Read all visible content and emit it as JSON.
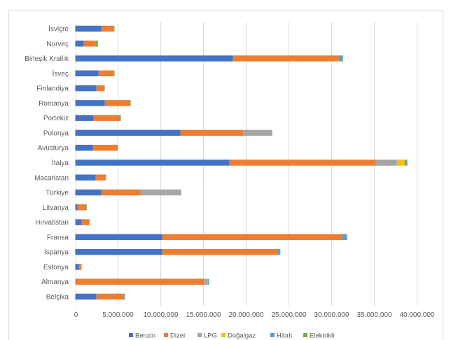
{
  "chart_data": {
    "type": "bar",
    "orientation": "horizontal",
    "stacked": true,
    "title": "",
    "xlabel": "",
    "ylabel": "",
    "xlim": [
      0,
      40000000
    ],
    "grid": true,
    "legend_position": "bottom",
    "categories": [
      "İsviçre",
      "Norveç",
      "Birleşik Krallık",
      "İsveç",
      "Finlandiya",
      "Romanya",
      "Portekiz",
      "Polonya",
      "Avusturya",
      "İtalya",
      "Macaristan",
      "Türkiye",
      "Litvanya",
      "Hırvatistan",
      "Fransa",
      "İspanya",
      "Estonya",
      "Almanya",
      "Belçika"
    ],
    "x_ticks": [
      "0",
      "5.000.000",
      "10.000.000",
      "15.000.000",
      "20.000.000",
      "25.000.000",
      "30.000.000",
      "35.000.000",
      "40.000.000"
    ],
    "x_tick_values": [
      0,
      5000000,
      10000000,
      15000000,
      20000000,
      25000000,
      30000000,
      35000000,
      40000000
    ],
    "series": [
      {
        "name": "Benzin",
        "color": "#4472c4",
        "values": [
          3060000,
          1000000,
          18500000,
          2730000,
          2480000,
          3470000,
          2160000,
          12320000,
          2070000,
          18060000,
          2400000,
          3060000,
          270000,
          760000,
          10190000,
          10190000,
          430000,
          0,
          2480000
        ]
      },
      {
        "name": "Dizel",
        "color": "#ed7d31",
        "values": [
          1390000,
          1320000,
          12400000,
          1720000,
          910000,
          2950000,
          2970000,
          7380000,
          2820000,
          17210000,
          1150000,
          4590000,
          1010000,
          840000,
          21120000,
          13520000,
          250000,
          15100000,
          3200000
        ]
      },
      {
        "name": "LPG",
        "color": "#a5a5a5",
        "values": [
          0,
          0,
          0,
          0,
          0,
          0,
          0,
          3310000,
          0,
          2460000,
          0,
          4670000,
          0,
          0,
          0,
          0,
          0,
          420000,
          0
        ]
      },
      {
        "name": "Doğalgaz",
        "color": "#ffc000",
        "values": [
          0,
          0,
          0,
          0,
          0,
          0,
          0,
          0,
          0,
          900000,
          0,
          0,
          0,
          0,
          0,
          0,
          0,
          50000,
          0
        ]
      },
      {
        "name": "Hibrit",
        "color": "#5b9bd5",
        "values": [
          80000,
          80000,
          400000,
          80000,
          0,
          0,
          140000,
          0,
          0,
          250000,
          0,
          0,
          0,
          0,
          490000,
          250000,
          0,
          60000,
          80000
        ]
      },
      {
        "name": "Elektrikli",
        "color": "#70ad47",
        "values": [
          70000,
          250000,
          100000,
          70000,
          60000,
          80000,
          80000,
          80000,
          90000,
          70000,
          70000,
          80000,
          50000,
          60000,
          100000,
          90000,
          50000,
          70000,
          80000
        ]
      }
    ]
  }
}
